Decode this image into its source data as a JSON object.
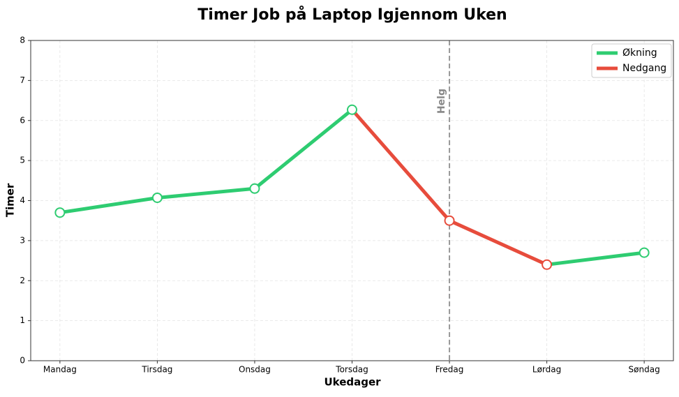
{
  "chart_data": {
    "type": "line",
    "title": "Timer Job på Laptop Igjennom Uken",
    "x_label": "Ukedager",
    "y_label": "Timer",
    "categories": [
      "Mandag",
      "Tirsdag",
      "Onsdag",
      "Torsdag",
      "Fredag",
      "Lørdag",
      "Søndag"
    ],
    "values": [
      3.7,
      4.07,
      4.3,
      6.27,
      3.5,
      2.4,
      2.7
    ],
    "legend": [
      {
        "name": "Økning",
        "color": "#2ecc71"
      },
      {
        "name": "Nedgang",
        "color": "#e74c3c"
      }
    ],
    "legend_position": "upper right",
    "annotations": [
      {
        "text": "Helg",
        "category": "Fredag"
      }
    ],
    "ylim": [
      0,
      8
    ],
    "yticks": [
      0,
      1,
      2,
      3,
      4,
      5,
      6,
      7,
      8
    ],
    "grid": true
  }
}
